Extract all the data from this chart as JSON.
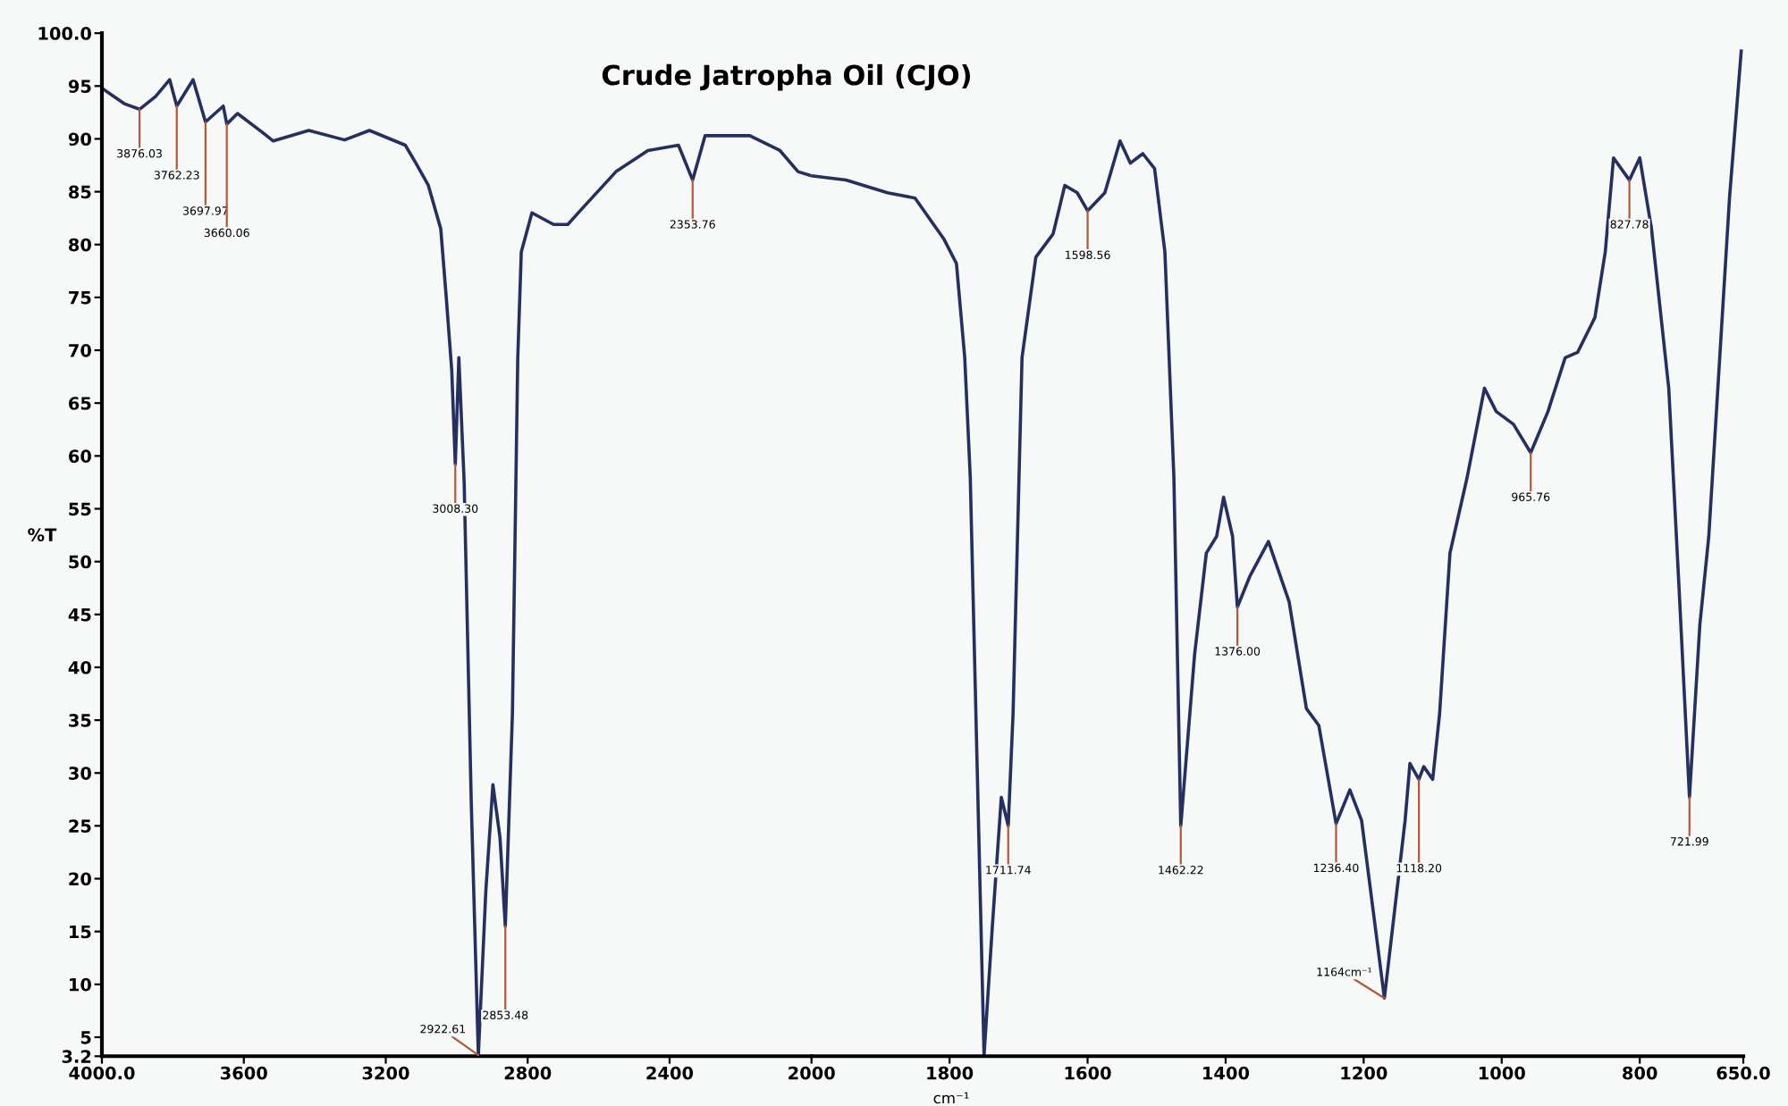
{
  "chart_data": [
    {
      "type": "line",
      "title": "Crude Jatropha Oil (CJO)",
      "ylabel": "%T",
      "xlim": [
        4000,
        2000
      ],
      "xticks": [
        {
          "value": 4000,
          "label": "4000.0"
        },
        3600,
        3200,
        2800,
        2400,
        2000
      ],
      "ylim": [
        3.2,
        100
      ],
      "yticks": [
        {
          "value": 100,
          "label": "100.0"
        },
        95,
        90,
        85,
        80,
        75,
        70,
        65,
        60,
        55,
        50,
        45,
        40,
        35,
        30,
        25,
        20,
        15,
        10,
        5,
        3.2
      ],
      "grid": false,
      "series": [
        {
          "color": "#25305e",
          "x": [
            4000,
            3970,
            3935,
            3894,
            3849,
            3809,
            3789,
            3743,
            3708,
            3658,
            3648,
            3618,
            3547,
            3517,
            3417,
            3316,
            3246,
            3145,
            3115,
            3080,
            3045,
            3029,
            3014,
            3004,
            2994,
            2979,
            2959,
            2939,
            2918,
            2898,
            2878,
            2863,
            2843,
            2828,
            2818,
            2788,
            2727,
            2687,
            2652,
            2551,
            2461,
            2375,
            2335,
            2300,
            2174,
            2089,
            2038,
            2000
          ],
          "values": [
            94.8,
            94.1,
            93.3,
            92.8,
            94.0,
            95.6,
            93.1,
            95.6,
            91.6,
            93.1,
            91.4,
            92.4,
            90.6,
            89.8,
            90.8,
            89.9,
            90.8,
            89.4,
            87.7,
            85.6,
            81.5,
            74.8,
            68.1,
            59.2,
            69.3,
            57.5,
            27.2,
            3.3,
            18.8,
            28.9,
            23.9,
            15.5,
            35.6,
            69.2,
            79.3,
            83.0,
            81.9,
            81.9,
            83.2,
            86.9,
            88.9,
            89.4,
            86.1,
            90.3,
            90.3,
            88.9,
            86.9,
            86.5
          ]
        }
      ],
      "annotations": [
        {
          "text": "3876.03",
          "x": 3894,
          "y": 92.8
        },
        {
          "text": "3762.23",
          "x": 3789,
          "y": 93.1
        },
        {
          "text": "3697.97",
          "x": 3708,
          "y": 91.6
        },
        {
          "text": "3660.06",
          "x": 3648,
          "y": 91.4
        },
        {
          "text": "3008.30",
          "x": 3004,
          "y": 59.2
        },
        {
          "text": "2922.61",
          "x": 2939,
          "y": 3.3
        },
        {
          "text": "2853.48",
          "x": 2863,
          "y": 15.5
        },
        {
          "text": "2353.76",
          "x": 2335,
          "y": 86.1
        }
      ]
    },
    {
      "type": "line",
      "xlabel": "cm⁻¹",
      "tick_labels": "x",
      "xlim": [
        2000,
        650
      ],
      "xticks": [
        1800,
        1600,
        1400,
        1200,
        1000,
        800,
        {
          "value": 650,
          "label": "650.0"
        }
      ],
      "ylim": [
        3.2,
        100
      ],
      "grid": false,
      "series": [
        {
          "color": "#25305e",
          "x": [
            2000,
            1950,
            1890,
            1850,
            1808,
            1790,
            1778,
            1770,
            1760,
            1750,
            1738,
            1725,
            1715,
            1708,
            1695,
            1675,
            1650,
            1633,
            1615,
            1600,
            1575,
            1553,
            1538,
            1520,
            1503,
            1488,
            1475,
            1465,
            1445,
            1428,
            1413,
            1403,
            1390,
            1383,
            1365,
            1338,
            1308,
            1283,
            1265,
            1240,
            1220,
            1203,
            1170,
            1140,
            1133,
            1120,
            1113,
            1100,
            1090,
            1075,
            1050,
            1025,
            1008,
            983,
            958,
            933,
            908,
            890,
            865,
            850,
            838,
            815,
            800,
            783,
            758,
            743,
            728,
            713,
            700,
            670,
            653
          ],
          "values": [
            86.5,
            86.1,
            84.9,
            84.4,
            80.5,
            78.2,
            69.3,
            58.0,
            30.6,
            3.3,
            15.5,
            27.7,
            25.0,
            35.6,
            69.3,
            78.8,
            81.0,
            85.6,
            84.9,
            83.2,
            84.9,
            89.8,
            87.7,
            88.6,
            87.2,
            79.3,
            58.0,
            25.0,
            41.2,
            50.8,
            52.4,
            56.1,
            52.4,
            45.7,
            48.6,
            51.9,
            46.2,
            36.1,
            34.5,
            25.2,
            28.4,
            25.5,
            8.7,
            25.5,
            30.9,
            29.4,
            30.6,
            29.4,
            35.6,
            50.8,
            58.0,
            66.4,
            64.2,
            63.0,
            60.3,
            64.2,
            69.3,
            69.8,
            73.1,
            79.3,
            88.2,
            86.1,
            88.2,
            81.5,
            66.4,
            47.4,
            27.7,
            44.0,
            52.4,
            84.4,
            98.3
          ]
        }
      ],
      "annotations": [
        {
          "text": "1711.74",
          "x": 1715,
          "y": 25.0
        },
        {
          "text": "1598.56",
          "x": 1600,
          "y": 83.2
        },
        {
          "text": "1462.22",
          "x": 1465,
          "y": 25.0
        },
        {
          "text": "1376.00",
          "x": 1383,
          "y": 45.7
        },
        {
          "text": "1236.40",
          "x": 1240,
          "y": 25.2
        },
        {
          "text": "1164cm⁻¹",
          "x": 1170,
          "y": 8.7
        },
        {
          "text": "1118.20",
          "x": 1120,
          "y": 29.4
        },
        {
          "text": "965.76",
          "x": 958,
          "y": 60.3
        },
        {
          "text": "827.78",
          "x": 815,
          "y": 86.1
        },
        {
          "text": "721.99",
          "x": 728,
          "y": 27.7
        }
      ]
    }
  ]
}
